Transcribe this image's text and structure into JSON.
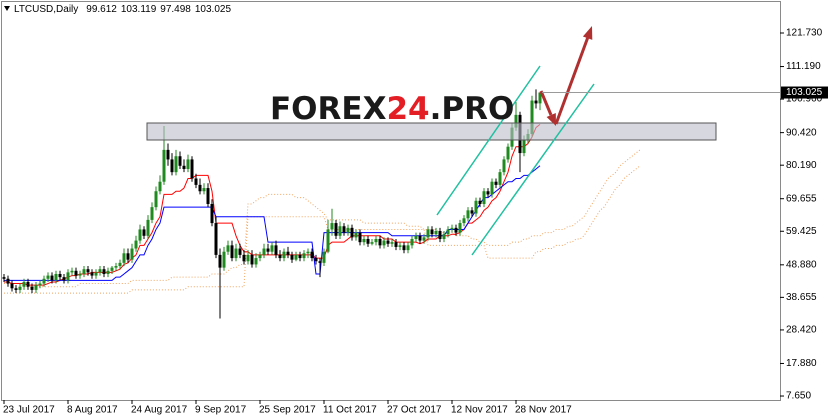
{
  "chart_data": {
    "type": "candlestick",
    "title": "LTCUSD,Daily",
    "categories": [
      "23 Jul 2017",
      null,
      null,
      null,
      null,
      null,
      null,
      null,
      null,
      null,
      null,
      null,
      null,
      null,
      null,
      null,
      "8 Aug 2017",
      null,
      null,
      null,
      null,
      null,
      null,
      null,
      null,
      null,
      null,
      null,
      null,
      null,
      null,
      null,
      "24 Aug 2017",
      null,
      null,
      null,
      null,
      null,
      null,
      null,
      null,
      null,
      null,
      null,
      null,
      null,
      null,
      null,
      "9 Sep 2017",
      null,
      null,
      null,
      null,
      null,
      null,
      null,
      null,
      null,
      null,
      null,
      null,
      null,
      null,
      null,
      "25 Sep 2017",
      null,
      null,
      null,
      null,
      null,
      null,
      null,
      null,
      null,
      null,
      null,
      null,
      null,
      null,
      null,
      "11 Oct 2017",
      null,
      null,
      null,
      null,
      null,
      null,
      null,
      null,
      null,
      null,
      null,
      null,
      null,
      null,
      null,
      "27 Oct 2017",
      null,
      null,
      null,
      null,
      null,
      null,
      null,
      null,
      null,
      null,
      null,
      null,
      null,
      null,
      null,
      "12 Nov 2017",
      null,
      null,
      null,
      null,
      null,
      null,
      null,
      null,
      null,
      null,
      null,
      null,
      null,
      null,
      null,
      "28 Nov 2017",
      null,
      null,
      null,
      null,
      null,
      null,
      null,
      null,
      null,
      null,
      null,
      null,
      null,
      null,
      null,
      null,
      null,
      null,
      null,
      null,
      null,
      null,
      null,
      null,
      null,
      null,
      null,
      null,
      null,
      null,
      null
    ],
    "open": [
      45,
      44.5,
      43,
      41.5,
      41,
      42,
      43.5,
      42,
      41,
      42.5,
      43,
      44.5,
      45.5,
      44,
      46,
      45,
      44,
      46.5,
      47,
      45.5,
      46,
      47.5,
      46.5,
      45.5,
      46.5,
      47.5,
      46,
      47,
      48,
      48.5,
      49.5,
      52.5,
      50.5,
      54,
      56.5,
      60,
      58,
      63,
      67,
      72,
      75,
      85,
      82,
      78,
      83,
      80,
      79,
      82,
      76,
      74,
      72,
      73,
      68,
      62,
      52,
      48,
      53,
      55,
      51,
      54,
      52,
      50,
      52,
      49,
      51,
      52,
      54,
      53,
      55,
      52,
      51,
      53,
      52,
      50.5,
      52,
      51,
      52.5,
      53,
      51,
      50,
      49.5,
      53,
      60,
      62,
      58,
      61,
      59,
      60.5,
      57.5,
      59,
      56,
      57,
      55.5,
      56,
      57,
      55,
      56.5,
      55.5,
      56,
      54.5,
      55,
      53.5,
      55,
      57,
      58,
      56.5,
      57.5,
      60,
      58.5,
      59.5,
      57,
      58.5,
      60,
      60.5,
      59,
      62,
      63.5,
      66,
      65,
      69,
      68,
      72,
      71,
      75,
      74,
      78,
      82,
      86,
      92,
      96,
      84,
      88,
      90,
      100.5,
      99.612,
      null,
      null,
      null,
      null,
      null,
      null,
      null,
      null,
      null,
      null,
      null,
      null,
      null,
      null,
      null,
      null,
      null,
      null,
      null,
      null,
      null,
      null,
      null,
      null,
      null
    ],
    "high": [
      46,
      45.5,
      44,
      42.5,
      43,
      44.5,
      44.5,
      43,
      43.5,
      44,
      45.5,
      46.5,
      46.5,
      47,
      47,
      46,
      47.5,
      48,
      48,
      47,
      48.5,
      48.5,
      47.5,
      47.5,
      48.5,
      48.5,
      48,
      48.5,
      49.5,
      50.5,
      54,
      54,
      55.5,
      58,
      61.5,
      61,
      64.5,
      68.5,
      73.5,
      77,
      92.5,
      87,
      84,
      85,
      84.5,
      82,
      83.5,
      83,
      77.5,
      76,
      74.5,
      74.5,
      69.5,
      64,
      54,
      54.5,
      56.5,
      56.5,
      55.5,
      55.5,
      53.5,
      53.5,
      53.5,
      52.5,
      53,
      55.5,
      55.5,
      56,
      56.5,
      53.5,
      54,
      54.5,
      53,
      53,
      53,
      53.5,
      54,
      54,
      52,
      51,
      54,
      63,
      66.5,
      63,
      62.5,
      62,
      61.5,
      61.5,
      60,
      60,
      58,
      58,
      57,
      58,
      58,
      57.5,
      57.5,
      57,
      57,
      56,
      56,
      56,
      58,
      59,
      59,
      58.5,
      61,
      61,
      60.5,
      60.5,
      59.5,
      61,
      61.5,
      61.5,
      63,
      64.5,
      67,
      67,
      70,
      70,
      73,
      73,
      76,
      76,
      79,
      83,
      87,
      93.5,
      100,
      97,
      89.5,
      91.5,
      102,
      104,
      103.119,
      null,
      null,
      null,
      null,
      null,
      null,
      null,
      null,
      null,
      null,
      null,
      null,
      null,
      null,
      null,
      null,
      null,
      null,
      null,
      null,
      null,
      null,
      null,
      null,
      null
    ],
    "low": [
      43.5,
      42,
      40.5,
      40,
      40,
      41,
      41,
      40,
      40,
      41.5,
      42,
      43.5,
      43,
      43,
      44,
      43,
      43,
      45.5,
      44.5,
      44.5,
      45,
      45.5,
      44.5,
      44.5,
      45.5,
      45,
      45,
      46,
      47,
      47.5,
      48.5,
      49.5,
      49.5,
      53,
      55.5,
      57,
      57,
      62,
      66,
      71,
      74,
      80,
      77,
      77,
      79,
      78,
      78,
      75,
      73,
      71,
      71,
      67,
      61,
      51,
      32,
      47,
      52,
      50,
      50,
      51,
      49,
      49,
      48,
      48,
      50,
      51,
      52,
      52,
      51,
      50,
      50,
      51,
      49.5,
      50,
      50,
      50,
      51,
      50,
      49,
      45,
      48.5,
      52.5,
      58,
      57,
      57,
      58,
      58,
      56.5,
      56.5,
      55,
      55,
      54.5,
      55,
      55,
      54,
      54,
      54.5,
      54.5,
      53.5,
      53.5,
      52.5,
      52.5,
      54,
      56,
      55.5,
      55.5,
      56.5,
      57.5,
      57.5,
      56,
      56,
      57.5,
      59,
      58,
      58,
      61,
      62.5,
      64,
      64,
      67,
      67,
      70,
      70,
      73,
      73,
      77,
      81,
      85,
      91,
      78,
      83,
      87,
      89,
      98,
      97.498,
      null,
      null,
      null,
      null,
      null,
      null,
      null,
      null,
      null,
      null,
      null,
      null,
      null,
      null,
      null,
      null,
      null,
      null,
      null,
      null,
      null,
      null,
      null,
      null,
      null
    ],
    "close": [
      44.5,
      43,
      41.5,
      41,
      42,
      43.5,
      42,
      41,
      42.5,
      43,
      44.5,
      45.5,
      44,
      46,
      45,
      44,
      46.5,
      47,
      45.5,
      46,
      47.5,
      46.5,
      45.5,
      46.5,
      47.5,
      46,
      47,
      48,
      48.5,
      49.5,
      52.5,
      50.5,
      54,
      56.5,
      60,
      58,
      63,
      67,
      72,
      75,
      85,
      82,
      78,
      83,
      80,
      79,
      82,
      76,
      74,
      72,
      73,
      68,
      62,
      52,
      48,
      53,
      55,
      51,
      54,
      52,
      50,
      52,
      49,
      51,
      52,
      54,
      53,
      55,
      52,
      51,
      53,
      52,
      50.5,
      52,
      51,
      52.5,
      53,
      51,
      50,
      49.5,
      53,
      60,
      62,
      58,
      61,
      59,
      60.5,
      57.5,
      59,
      56,
      57,
      55.5,
      56,
      57,
      55,
      56.5,
      55.5,
      56,
      54.5,
      55,
      53.5,
      55,
      57,
      58,
      56.5,
      57.5,
      60,
      58.5,
      59.5,
      57,
      58.5,
      60,
      60.5,
      59,
      62,
      63.5,
      66,
      65,
      69,
      68,
      72,
      71,
      75,
      74,
      78,
      82,
      86,
      92,
      96,
      84,
      88,
      90,
      100.5,
      99.6,
      103.025,
      null,
      null,
      null,
      null,
      null,
      null,
      null,
      null,
      null,
      null,
      null,
      null,
      null,
      null,
      null,
      null,
      null,
      null,
      null,
      null,
      null,
      null,
      null,
      null,
      null
    ],
    "up_color": "#1f8a1f",
    "down_color": "#000000",
    "lines": [
      {
        "color": "#f4a460",
        "style": "dotted",
        "values": [
          43,
          43,
          43,
          43,
          43,
          42,
          42,
          42,
          42,
          42,
          42,
          42,
          42,
          42,
          42,
          42,
          42,
          42,
          42,
          43,
          43,
          43,
          43,
          43,
          43,
          43,
          43,
          43,
          43,
          43,
          43,
          43,
          44,
          44,
          44,
          44,
          44,
          44,
          44,
          44,
          44,
          44,
          45,
          45,
          45,
          45,
          45,
          45,
          45,
          45,
          45,
          45,
          46,
          46,
          46,
          46,
          47,
          48,
          48,
          49,
          49,
          68,
          68,
          69,
          70,
          70,
          71,
          71,
          71,
          71,
          71,
          71,
          71,
          70,
          70,
          70,
          69,
          68,
          67,
          66,
          65,
          63,
          63,
          63,
          63,
          63,
          63,
          63,
          63,
          63,
          62,
          62,
          62,
          62,
          62,
          62,
          62,
          62,
          62,
          62,
          62,
          61,
          61,
          61,
          61,
          60,
          60,
          60,
          60,
          59,
          59,
          59,
          59,
          58,
          58,
          58,
          58,
          57,
          57,
          56,
          56,
          55,
          55,
          55,
          55,
          55,
          55,
          56,
          56,
          56,
          57,
          57,
          58,
          58,
          58,
          59,
          59,
          59,
          60,
          60,
          60,
          61,
          61,
          62,
          63,
          64,
          66,
          68,
          70,
          72,
          74,
          76,
          77,
          78,
          80,
          81,
          82,
          83,
          84,
          85
        ]
      },
      {
        "color": "#f4a460",
        "style": "dotted",
        "values": [
          40,
          40,
          40,
          40,
          40,
          40,
          40,
          40,
          40,
          40,
          40,
          40,
          40,
          40,
          40,
          40,
          40,
          40,
          40,
          40,
          40,
          40,
          40,
          40,
          40,
          40,
          40,
          40,
          40,
          40,
          40,
          40,
          41,
          41,
          41,
          41,
          41,
          41,
          41,
          41,
          41,
          41,
          41,
          41,
          41,
          41,
          42,
          42,
          42,
          42,
          42,
          42,
          42,
          42,
          42,
          42,
          42,
          42,
          42,
          42,
          42,
          64,
          64,
          64,
          64,
          64,
          64,
          64,
          64,
          64,
          64,
          64,
          64,
          64,
          64,
          64,
          64,
          64,
          64,
          64,
          64,
          60,
          60,
          60,
          60,
          60,
          60,
          60,
          60,
          60,
          60,
          60,
          60,
          60,
          60,
          60,
          60,
          60,
          60,
          60,
          60,
          60,
          60,
          60,
          60,
          60,
          55,
          55,
          55,
          55,
          55,
          55,
          55,
          55,
          55,
          55,
          55,
          55,
          55,
          55,
          55,
          51,
          51,
          51,
          51,
          51,
          51,
          51,
          51,
          51,
          51,
          51,
          51,
          53,
          53,
          54,
          54,
          54,
          55,
          55,
          55,
          56,
          56,
          57,
          57,
          58,
          60,
          62,
          64,
          66,
          67,
          69,
          71,
          73,
          74,
          76,
          77,
          78,
          79,
          80
        ]
      },
      {
        "color": "#ff0000",
        "style": "solid",
        "values": [
          43.5,
          43.5,
          43,
          43,
          43,
          43,
          42.5,
          42.5,
          42.5,
          42.5,
          42.5,
          43,
          43.5,
          43.5,
          44,
          44.5,
          45,
          45.5,
          45.5,
          46,
          46,
          46,
          46.5,
          46.5,
          46.5,
          46.5,
          46.5,
          46.5,
          47,
          47.5,
          49,
          49.5,
          51,
          52,
          55,
          55,
          57,
          59,
          62,
          64,
          71,
          71,
          71,
          72,
          72,
          73,
          76,
          76,
          77,
          77,
          77,
          77,
          72,
          62,
          62,
          62,
          62,
          62,
          58,
          55,
          53,
          53,
          52,
          52,
          52,
          52,
          52,
          52,
          52,
          52,
          52,
          52,
          52,
          52,
          52,
          52,
          52,
          52,
          51,
          51,
          51,
          55,
          56,
          56,
          56,
          56,
          57,
          58,
          58,
          58,
          58,
          58,
          58,
          58,
          58,
          57,
          57,
          57,
          56,
          56,
          56,
          56,
          56,
          56,
          55.5,
          56,
          57,
          57,
          57,
          58,
          58,
          58,
          58.5,
          58.5,
          59,
          60,
          62,
          62,
          63,
          64,
          66,
          67,
          69,
          70,
          72,
          75,
          78,
          83,
          86,
          86,
          86,
          87,
          89,
          92,
          93,
          null,
          null,
          null,
          null,
          null,
          null,
          null,
          null,
          null,
          null,
          null,
          null,
          null,
          null,
          null,
          null,
          null,
          null,
          null,
          null,
          null,
          null,
          null,
          null,
          null
        ]
      },
      {
        "color": "#0000ff",
        "style": "solid",
        "values": [
          44,
          44,
          44,
          44,
          44,
          44,
          44,
          44,
          44,
          44,
          44,
          44,
          44,
          44,
          44,
          44,
          44,
          44,
          44,
          44,
          44,
          44,
          44,
          44,
          44,
          44,
          44,
          44,
          45,
          45,
          46,
          47,
          48,
          50,
          52,
          52,
          55,
          57,
          60,
          62,
          67,
          67,
          67,
          67,
          67,
          67,
          67,
          67,
          67,
          67,
          67,
          67,
          67,
          64,
          64,
          64,
          64,
          64,
          64,
          64,
          64,
          64,
          64,
          64,
          64,
          64,
          56,
          56,
          56,
          56,
          56,
          56,
          56,
          56,
          56,
          56,
          56,
          56,
          46,
          46,
          59,
          59,
          59,
          59,
          59,
          59,
          59,
          59,
          59,
          59,
          59,
          59,
          59,
          59,
          59,
          59,
          59,
          58,
          58,
          58,
          58,
          58,
          58,
          58,
          58,
          58,
          58,
          58,
          58,
          58,
          58,
          60,
          60,
          60,
          60,
          60,
          62,
          64,
          66,
          68,
          70,
          70,
          71,
          72,
          73,
          74,
          75,
          75,
          76,
          76,
          77,
          77,
          78,
          79,
          80,
          null,
          null,
          null,
          null,
          null,
          null,
          null,
          null,
          null,
          null,
          null,
          null,
          null,
          null,
          null,
          null,
          null,
          null,
          null,
          null,
          null,
          null,
          null,
          null,
          null
        ]
      }
    ],
    "ylim": [
      6.4,
      132.1
    ],
    "yticks": [
      {
        "value": 121.73,
        "label": "121.730"
      },
      {
        "value": 111.19,
        "label": "111.190"
      },
      {
        "value": 100.96,
        "label": "100.960"
      },
      {
        "value": 90.42,
        "label": "90.420"
      },
      {
        "value": 80.19,
        "label": "80.190"
      },
      69.655,
      59.425,
      {
        "value": 48.88,
        "label": "48.880"
      },
      38.655,
      {
        "value": 28.42,
        "label": "28.420"
      },
      {
        "value": 17.88,
        "label": "17.880"
      },
      {
        "value": 7.65,
        "label": "7.650"
      }
    ],
    "watermark": {
      "texts": [
        "FOREX",
        "24",
        ".PRO"
      ],
      "colors": [
        "#1a1a1a",
        "#e31e24",
        "#1a1a1a"
      ]
    }
  }
}
